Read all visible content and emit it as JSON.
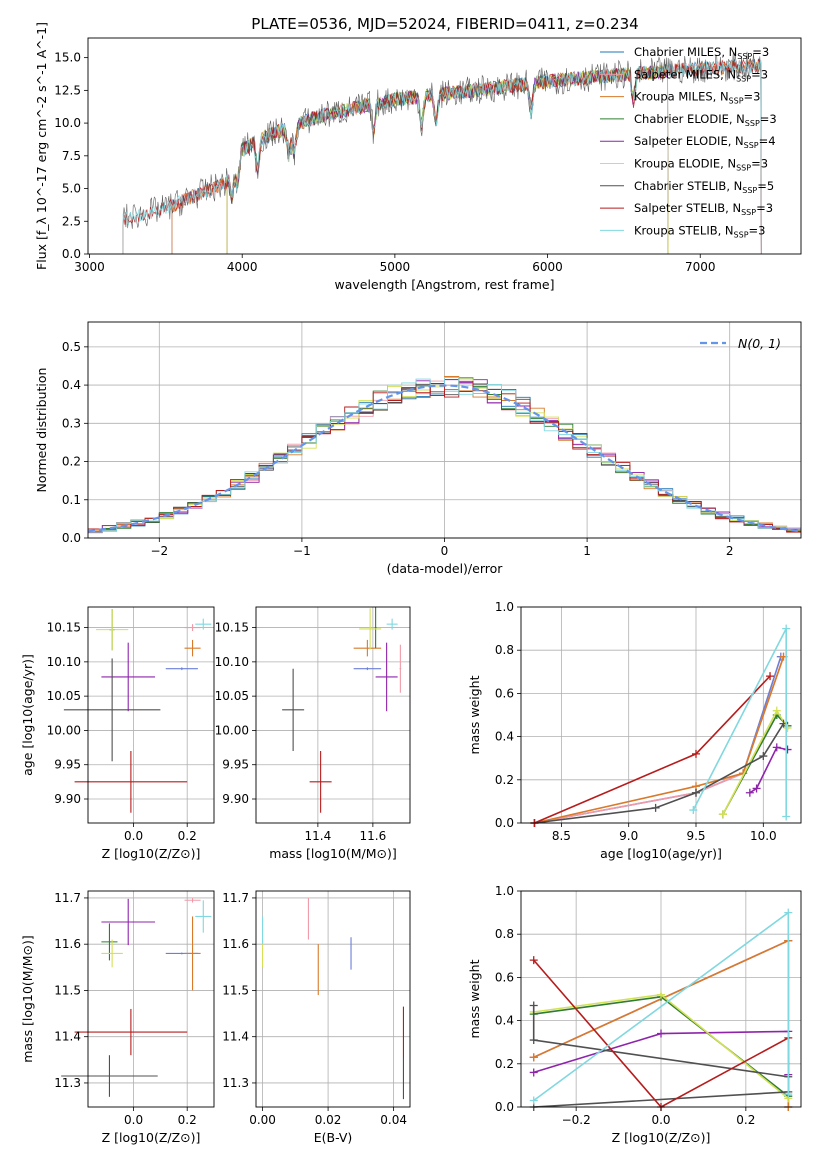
{
  "figure_title": "PLATE=0536, MJD=52024, FIBERID=0411, z=0.234",
  "colors": {
    "chabrier_miles": "#1f77b4",
    "salpeter_miles": "#f09aa8",
    "kroupa_miles": "#d87a2a",
    "chabrier_elodie": "#2e7d32",
    "salpeter_elodie": "#8e24aa",
    "kroupa_elodie": "#d4e157",
    "chabrier_stelib": "#505050",
    "salpeter_stelib": "#b71c1c",
    "kroupa_stelib": "#80d8e0",
    "normal_line": "#6495ed",
    "grid": "#b0b0b0"
  },
  "chart_data": [
    {
      "id": "spectrum",
      "type": "line",
      "title": "PLATE=0536, MJD=52024, FIBERID=0411, z=0.234",
      "xlabel": "wavelength [Angstrom, rest frame]",
      "ylabel": "Flux [f_λ 10^-17 erg cm^-2 s^-1 A^-1]",
      "xlim": [
        2990,
        7660
      ],
      "ylim": [
        0,
        16.5
      ],
      "xticks": [
        3000,
        4000,
        5000,
        6000,
        7000
      ],
      "yticks": [
        0.0,
        2.5,
        5.0,
        7.5,
        10.0,
        12.5,
        15.0
      ],
      "grid": false,
      "legend_position": "right",
      "legend": [
        {
          "label": "Chabrier MILES, N",
          "sub": "SSP",
          "suffix": "=3",
          "color": "#1f77b4"
        },
        {
          "label": "Salpeter MILES, N",
          "sub": "SSP",
          "suffix": "=3",
          "color": "#f09aa8"
        },
        {
          "label": "Kroupa MILES, N",
          "sub": "SSP",
          "suffix": "=3",
          "color": "#d87a2a"
        },
        {
          "label": "Chabrier ELODIE, N",
          "sub": "SSP",
          "suffix": "=3",
          "color": "#2e7d32"
        },
        {
          "label": "Salpeter ELODIE, N",
          "sub": "SSP",
          "suffix": "=4",
          "color": "#8e24aa"
        },
        {
          "label": "Kroupa ELODIE, N",
          "sub": "SSP",
          "suffix": "=3",
          "color": "#d4e157"
        },
        {
          "label": "Chabrier STELIB, N",
          "sub": "SSP",
          "suffix": "=5",
          "color": "#505050"
        },
        {
          "label": "Salpeter STELIB, N",
          "sub": "SSP",
          "suffix": "=3",
          "color": "#b71c1c"
        },
        {
          "label": "Kroupa STELIB, N",
          "sub": "SSP",
          "suffix": "=3",
          "color": "#80d8e0"
        }
      ],
      "continuum": {
        "x": [
          3220,
          3500,
          3700,
          3900,
          4000,
          4200,
          4500,
          4800,
          5000,
          5300,
          5600,
          6000,
          6400,
          6800,
          7200,
          7400
        ],
        "y": [
          2.7,
          3.5,
          4.5,
          5.5,
          8.0,
          9.2,
          10.5,
          11.3,
          11.8,
          12.2,
          12.6,
          13.2,
          13.6,
          14.0,
          14.3,
          14.4
        ]
      },
      "series_ranges": [
        {
          "name": "Chabrier MILES",
          "start": 3540,
          "end": 7400
        },
        {
          "name": "Salpeter MILES",
          "start": 3540,
          "end": 7400
        },
        {
          "name": "Kroupa MILES",
          "start": 3540,
          "end": 7400
        },
        {
          "name": "Chabrier ELODIE",
          "start": 3900,
          "end": 6790
        },
        {
          "name": "Salpeter ELODIE",
          "start": 3900,
          "end": 6790
        },
        {
          "name": "Kroupa ELODIE",
          "start": 3900,
          "end": 6790
        },
        {
          "name": "Chabrier STELIB",
          "start": 3220,
          "end": 7400
        },
        {
          "name": "Salpeter STELIB",
          "start": 3220,
          "end": 7400
        },
        {
          "name": "Kroupa STELIB",
          "start": 3220,
          "end": 7400
        }
      ]
    },
    {
      "id": "residuals",
      "type": "histogram",
      "xlabel": "(data-model)/error",
      "ylabel": "Normed distribution",
      "xlim": [
        -2.5,
        2.5
      ],
      "ylim": [
        0,
        0.565
      ],
      "xticks": [
        -2,
        -1,
        0,
        1,
        2
      ],
      "yticks": [
        0.0,
        0.1,
        0.2,
        0.3,
        0.4,
        0.5
      ],
      "grid": true,
      "legend_position": "top-right",
      "legend": [
        {
          "label": "N(0, 1)",
          "color": "#6495ed",
          "style": "dashed"
        }
      ],
      "bin_width": 0.1,
      "note": "nine step-histograms, one per stellar population model, all close to a unit normal"
    },
    {
      "id": "age_vs_z",
      "type": "errorbar",
      "xlabel": "Z [log10(Z/Z⊙)]",
      "ylabel": "age  [log10(age/yr)]",
      "xlim": [
        -0.17,
        0.3
      ],
      "ylim": [
        9.865,
        10.18
      ],
      "xticks": [
        0.0,
        0.2
      ],
      "yticks": [
        9.9,
        9.95,
        10.0,
        10.05,
        10.1,
        10.15
      ],
      "grid": true,
      "points": [
        {
          "series": "Chabrier MILES",
          "x": 0.18,
          "y": 10.09,
          "xerr": 0.06,
          "yerr": 0.002,
          "color": "#6b7fd8"
        },
        {
          "series": "Salpeter MILES",
          "x": 0.22,
          "y": 10.15,
          "xerr": 0.03,
          "yerr": 0.005,
          "color": "#f09aa8"
        },
        {
          "series": "Kroupa MILES",
          "x": 0.22,
          "y": 10.12,
          "xerr": 0.03,
          "yerr": 0.012,
          "color": "#d87a2a"
        },
        {
          "series": "Chabrier ELODIE",
          "x": -0.08,
          "y": 10.147,
          "xerr": 0.01,
          "yerr": 0.03,
          "color": "#2e7d32"
        },
        {
          "series": "Salpeter ELODIE",
          "x": -0.02,
          "y": 10.078,
          "xerr": 0.1,
          "yerr": 0.05,
          "color": "#8e24aa"
        },
        {
          "series": "Kroupa ELODIE",
          "x": -0.08,
          "y": 10.147,
          "xerr": 0.06,
          "yerr": 0.03,
          "color": "#d4e157"
        },
        {
          "series": "Chabrier STELIB",
          "x": -0.08,
          "y": 10.03,
          "xerr": 0.18,
          "yerr": 0.075,
          "color": "#505050"
        },
        {
          "series": "Salpeter STELIB",
          "x": -0.01,
          "y": 9.925,
          "xerr": 0.21,
          "yerr": 0.045,
          "color": "#b71c1c"
        },
        {
          "series": "Kroupa STELIB",
          "x": 0.26,
          "y": 10.155,
          "xerr": 0.03,
          "yerr": 0.008,
          "color": "#80d8e0"
        }
      ]
    },
    {
      "id": "age_vs_mass",
      "type": "errorbar",
      "xlabel": "mass [log10(M/M⊙)]",
      "ylabel": "",
      "xlim": [
        11.175,
        11.735
      ],
      "ylim": [
        9.865,
        10.18
      ],
      "xticks": [
        11.4,
        11.6
      ],
      "yticks": [
        9.9,
        9.95,
        10.0,
        10.05,
        10.1,
        10.15
      ],
      "grid": true,
      "points": [
        {
          "series": "Chabrier MILES",
          "x": 11.58,
          "y": 10.09,
          "xerr": 0.05,
          "yerr": 0.002,
          "color": "#6b7fd8"
        },
        {
          "series": "Salpeter MILES",
          "x": 11.7,
          "y": 10.09,
          "xerr": 0.003,
          "yerr": 0.035,
          "color": "#f09aa8"
        },
        {
          "series": "Kroupa MILES",
          "x": 11.58,
          "y": 10.12,
          "xerr": 0.05,
          "yerr": 0.012,
          "color": "#d87a2a"
        },
        {
          "series": "Chabrier ELODIE",
          "x": 11.61,
          "y": 10.15,
          "xerr": 0.003,
          "yerr": 0.03,
          "color": "#2e7d32"
        },
        {
          "series": "Salpeter ELODIE",
          "x": 11.65,
          "y": 10.078,
          "xerr": 0.04,
          "yerr": 0.05,
          "color": "#8e24aa"
        },
        {
          "series": "Kroupa ELODIE",
          "x": 11.59,
          "y": 10.148,
          "xerr": 0.04,
          "yerr": 0.03,
          "color": "#d4e157"
        },
        {
          "series": "Chabrier STELIB",
          "x": 11.31,
          "y": 10.03,
          "xerr": 0.04,
          "yerr": 0.06,
          "color": "#505050"
        },
        {
          "series": "Salpeter STELIB",
          "x": 11.41,
          "y": 9.925,
          "xerr": 0.04,
          "yerr": 0.045,
          "color": "#b71c1c"
        },
        {
          "series": "Kroupa STELIB",
          "x": 11.67,
          "y": 10.155,
          "xerr": 0.02,
          "yerr": 0.008,
          "color": "#80d8e0"
        }
      ]
    },
    {
      "id": "weight_vs_age",
      "type": "line",
      "xlabel": "age  [log10(age/yr)]",
      "ylabel": "mass weight",
      "xlim": [
        8.2,
        10.28
      ],
      "ylim": [
        0,
        1.0
      ],
      "xticks": [
        8.5,
        9.0,
        9.5,
        10.0
      ],
      "yticks": [
        0.0,
        0.2,
        0.4,
        0.6,
        0.8,
        1.0
      ],
      "grid": true,
      "series": [
        {
          "name": "Chabrier MILES",
          "color": "#6b7fd8",
          "x": [
            8.3,
            9.5,
            9.85,
            10.13
          ],
          "y": [
            0.0,
            0.14,
            0.23,
            0.77
          ]
        },
        {
          "name": "Salpeter MILES",
          "color": "#f09aa8",
          "x": [
            8.3,
            9.5,
            9.85,
            10.15
          ],
          "y": [
            0.0,
            0.14,
            0.23,
            0.77
          ]
        },
        {
          "name": "Kroupa MILES",
          "color": "#d87a2a",
          "x": [
            8.3,
            9.5,
            9.85,
            10.15
          ],
          "y": [
            0.0,
            0.17,
            0.23,
            0.77
          ]
        },
        {
          "name": "Chabrier ELODIE",
          "color": "#2e7d32",
          "x": [
            9.7,
            10.1,
            10.18
          ],
          "y": [
            0.04,
            0.5,
            0.45
          ]
        },
        {
          "name": "Salpeter ELODIE",
          "color": "#8e24aa",
          "x": [
            9.9,
            9.95,
            10.1,
            10.18
          ],
          "y": [
            0.14,
            0.16,
            0.35,
            0.34
          ]
        },
        {
          "name": "Kroupa ELODIE",
          "color": "#d4e157",
          "x": [
            9.7,
            10.1,
            10.18
          ],
          "y": [
            0.04,
            0.52,
            0.44
          ]
        },
        {
          "name": "Chabrier STELIB",
          "color": "#505050",
          "x": [
            8.3,
            9.2,
            9.5,
            10.0,
            10.15
          ],
          "y": [
            0.0,
            0.07,
            0.14,
            0.31,
            0.46
          ]
        },
        {
          "name": "Salpeter STELIB",
          "color": "#b71c1c",
          "x": [
            8.3,
            9.5,
            10.05
          ],
          "y": [
            0.0,
            0.32,
            0.68
          ]
        },
        {
          "name": "Kroupa STELIB",
          "color": "#80d8e0",
          "x": [
            9.48,
            10.17,
            10.17
          ],
          "y": [
            0.06,
            0.9,
            0.03
          ]
        }
      ]
    },
    {
      "id": "mass_vs_z",
      "type": "errorbar",
      "xlabel": "Z [log10(Z/Z⊙)]",
      "ylabel": "mass [log10(M/M⊙)]",
      "xlim": [
        -0.17,
        0.3
      ],
      "ylim": [
        11.248,
        11.715
      ],
      "xticks": [
        0.0,
        0.2
      ],
      "yticks": [
        11.3,
        11.4,
        11.5,
        11.6,
        11.7
      ],
      "grid": true,
      "points": [
        {
          "series": "Chabrier MILES",
          "x": 0.18,
          "y": 11.58,
          "xerr": 0.06,
          "yerr": 0.002,
          "color": "#6b7fd8"
        },
        {
          "series": "Salpeter MILES",
          "x": 0.22,
          "y": 11.695,
          "xerr": 0.03,
          "yerr": 0.005,
          "color": "#f09aa8"
        },
        {
          "series": "Kroupa MILES",
          "x": 0.22,
          "y": 11.58,
          "xerr": 0.03,
          "yerr": 0.08,
          "color": "#d87a2a"
        },
        {
          "series": "Chabrier ELODIE",
          "x": -0.09,
          "y": 11.605,
          "xerr": 0.03,
          "yerr": 0.04,
          "color": "#2e7d32"
        },
        {
          "series": "Salpeter ELODIE",
          "x": -0.02,
          "y": 11.648,
          "xerr": 0.1,
          "yerr": 0.05,
          "color": "#8e24aa"
        },
        {
          "series": "Kroupa ELODIE",
          "x": -0.08,
          "y": 11.58,
          "xerr": 0.04,
          "yerr": 0.03,
          "color": "#d4e157"
        },
        {
          "series": "Chabrier STELIB",
          "x": -0.09,
          "y": 11.315,
          "xerr": 0.18,
          "yerr": 0.045,
          "color": "#505050"
        },
        {
          "series": "Salpeter STELIB",
          "x": -0.01,
          "y": 11.41,
          "xerr": 0.21,
          "yerr": 0.05,
          "color": "#b71c1c"
        },
        {
          "series": "Kroupa STELIB",
          "x": 0.26,
          "y": 11.66,
          "xerr": 0.03,
          "yerr": 0.035,
          "color": "#80d8e0"
        }
      ]
    },
    {
      "id": "mass_vs_ebv",
      "type": "errorbar",
      "xlabel": "E(B-V)",
      "ylabel": "",
      "xlim": [
        -0.002,
        0.045
      ],
      "ylim": [
        11.248,
        11.715
      ],
      "xticks": [
        0.0,
        0.02,
        0.04
      ],
      "yticks": [
        11.3,
        11.4,
        11.5,
        11.6,
        11.7
      ],
      "grid": true,
      "points": [
        {
          "series": "Chabrier MILES",
          "x": 0.027,
          "y": 11.58,
          "xerr": 0.0,
          "yerr": 0.035,
          "color": "#6b7fd8"
        },
        {
          "series": "Salpeter MILES",
          "x": 0.014,
          "y": 11.655,
          "xerr": 0.0,
          "yerr": 0.045,
          "color": "#f09aa8"
        },
        {
          "series": "Kroupa MILES",
          "x": 0.017,
          "y": 11.545,
          "xerr": 0.0,
          "yerr": 0.055,
          "color": "#d87a2a"
        },
        {
          "series": "Kroupa ELODIE",
          "x": 0.0,
          "y": 11.58,
          "xerr": 0.0,
          "yerr": 0.03,
          "color": "#d4e157"
        },
        {
          "series": "Kroupa STELIB",
          "x": 0.0,
          "y": 11.63,
          "xerr": 0.0,
          "yerr": 0.03,
          "color": "#80d8e0"
        },
        {
          "series": "Chabrier STELIB",
          "x": 0.043,
          "y": 11.31,
          "xerr": 0.0,
          "yerr": 0.045,
          "color": "#505050"
        },
        {
          "series": "Salpeter STELIB",
          "x": 0.043,
          "y": 11.41,
          "xerr": 0.0,
          "yerr": 0.055,
          "color": "#b71c1c"
        }
      ]
    },
    {
      "id": "weight_vs_z",
      "type": "line",
      "xlabel": "Z [log10(Z/Z⊙)]",
      "ylabel": "mass weight",
      "xlim": [
        -0.33,
        0.33
      ],
      "ylim": [
        0,
        1.0
      ],
      "xticks": [
        -0.2,
        0.0,
        0.2
      ],
      "yticks": [
        0.0,
        0.2,
        0.4,
        0.6,
        0.8,
        1.0
      ],
      "grid": true,
      "series": [
        {
          "name": "Chabrier MILES",
          "color": "#6b7fd8",
          "x": [
            -0.3,
            0.3,
            0.3
          ],
          "y": [
            0.23,
            0.77,
            0.0
          ]
        },
        {
          "name": "Salpeter MILES",
          "color": "#f09aa8",
          "x": [
            -0.3,
            0.3,
            0.3
          ],
          "y": [
            0.23,
            0.77,
            0.0
          ]
        },
        {
          "name": "Kroupa MILES",
          "color": "#d87a2a",
          "x": [
            -0.3,
            0.3,
            0.3
          ],
          "y": [
            0.23,
            0.77,
            0.0
          ]
        },
        {
          "name": "Chabrier ELODIE",
          "color": "#2e7d32",
          "x": [
            -0.3,
            0.0,
            0.3
          ],
          "y": [
            0.43,
            0.51,
            0.05
          ]
        },
        {
          "name": "Salpeter ELODIE",
          "color": "#8e24aa",
          "x": [
            -0.3,
            0.0,
            0.3,
            0.3
          ],
          "y": [
            0.16,
            0.34,
            0.35,
            0.15
          ]
        },
        {
          "name": "Kroupa ELODIE",
          "color": "#d4e157",
          "x": [
            -0.3,
            0.0,
            0.3
          ],
          "y": [
            0.44,
            0.52,
            0.04
          ]
        },
        {
          "name": "Chabrier STELIB",
          "color": "#505050",
          "x": [
            -0.3,
            0.3,
            0.3,
            -0.3,
            -0.3
          ],
          "y": [
            0.0,
            0.07,
            0.14,
            0.31,
            0.47
          ]
        },
        {
          "name": "Salpeter STELIB",
          "color": "#b71c1c",
          "x": [
            -0.3,
            0.0,
            0.3
          ],
          "y": [
            0.68,
            0.0,
            0.32
          ]
        },
        {
          "name": "Kroupa STELIB",
          "color": "#80d8e0",
          "x": [
            -0.3,
            0.3,
            0.3
          ],
          "y": [
            0.03,
            0.9,
            0.06
          ]
        }
      ]
    }
  ]
}
